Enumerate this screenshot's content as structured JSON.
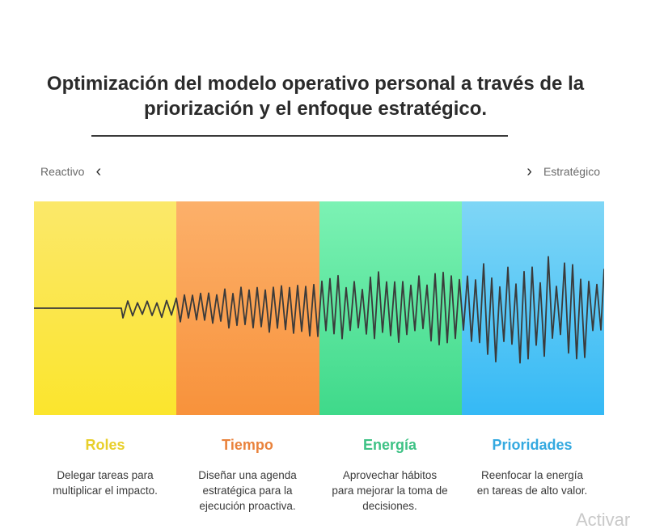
{
  "title": "Optimización del modelo operativo personal a través de la priorización y el enfoque estratégico.",
  "scale": {
    "left_label": "Reactivo",
    "left_chevron": "‹",
    "right_label": "Estratégico",
    "right_chevron": "›"
  },
  "stages": [
    {
      "title": "Roles",
      "color": "#e8cf2a",
      "description": "Delegar tareas para multiplicar el impacto."
    },
    {
      "title": "Tiempo",
      "color": "#e9823c",
      "description": "Diseñar una agenda estratégica para la ejecución proactiva."
    },
    {
      "title": "Energía",
      "color": "#3ec285",
      "description": "Aprovechar hábitos para mejorar la toma de decisiones."
    },
    {
      "title": "Prioridades",
      "color": "#34a9e0",
      "description": "Reenfocar la energía en tareas de alto valor."
    }
  ],
  "watermark": "Activar"
}
